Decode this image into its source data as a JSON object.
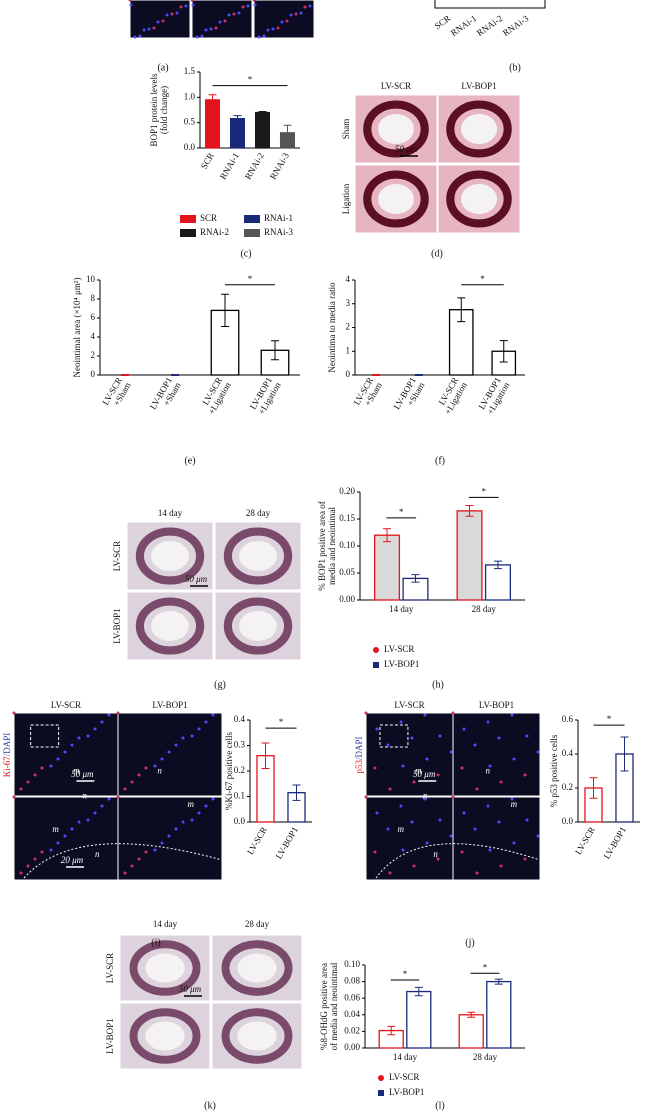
{
  "panel_labels": [
    "(a)",
    "(b)",
    "(c)",
    "(d)",
    "(e)",
    "(f)",
    "(g)",
    "(h)",
    "(i)",
    "(j)",
    "(k)",
    "(l)"
  ],
  "figure": {
    "b": {
      "categories": [
        "SCR",
        "RNAi-1",
        "RNAi-2",
        "RNAi-3"
      ]
    },
    "d": {
      "columns": [
        "LV-SCR",
        "LV-BOP1"
      ],
      "rows": [
        "Sham",
        "Ligation"
      ],
      "scale": "50 μm"
    },
    "g": {
      "columns": [
        "14 day",
        "28 day"
      ],
      "rows": [
        "LV-SCR",
        "LV-BOP1"
      ],
      "scale": "50 μm"
    },
    "i": {
      "columns": [
        "LV-SCR",
        "LV-BOP1"
      ],
      "stain": [
        "Ki-67",
        "/DAPI"
      ],
      "scales": [
        "50 μm",
        "20 μm"
      ],
      "regions": [
        "m",
        "n"
      ]
    },
    "j": {
      "columns": [
        "LV-SCR",
        "LV-BOP1"
      ],
      "stain": [
        "p53",
        "/DAPI"
      ],
      "scales": [
        "50 μm"
      ],
      "regions": [
        "m",
        "n"
      ]
    },
    "k": {
      "columns": [
        "14 day",
        "28 day"
      ],
      "rows": [
        "LV-SCR",
        "LV-BOP1"
      ],
      "scale": "50 μm"
    }
  },
  "chart_data": [
    {
      "type": "bar",
      "ylabel": [
        "BOP1 protein levels",
        "(fold change)"
      ],
      "categories": [
        [
          "SCR"
        ],
        [
          "RNAi-1"
        ],
        [
          "RNAi-2"
        ],
        [
          "RNAi-3"
        ]
      ],
      "values": [
        0.95,
        0.58,
        0.7,
        0.3
      ],
      "errors": [
        0.1,
        0.06,
        0.02,
        0.15
      ],
      "colors": [
        "#e3141c",
        "#1b2a78",
        "#1a1a1a",
        "#555555"
      ],
      "fills": [
        "#e3141c",
        "#1b2a78",
        "#1a1a1a",
        "#555555"
      ],
      "legend": [
        "SCR",
        "RNAi-1",
        "RNAi-2",
        "RNAi-3"
      ],
      "annotations": [
        "*"
      ],
      "ylim": [
        0,
        1.5
      ],
      "yticks": [
        {
          "value": 0,
          "label": "0.0"
        },
        0.5,
        {
          "value": 1,
          "label": "1.0"
        },
        1.5
      ]
    },
    {
      "type": "bar",
      "ylabel": [
        "Neointimal area (×10⁴ μm²)"
      ],
      "categories": [
        [
          "LV-SCR",
          "+Sham"
        ],
        [
          "LV-BOP1",
          "+Sham"
        ],
        [
          "LV-SCR",
          "+Ligation"
        ],
        [
          "LV-BOP1",
          "+Ligation"
        ]
      ],
      "values": [
        0,
        0,
        6.8,
        2.6
      ],
      "errors": [
        0.05,
        0.05,
        1.7,
        1.0
      ],
      "colors": [
        "#e3141c",
        "#1b2a78",
        "#000000",
        "#000000"
      ],
      "fills": [
        "#ffffff",
        "#ffffff",
        "#ffffff",
        "#ffffff"
      ],
      "annotations": [
        "*"
      ],
      "ylim": [
        0,
        10
      ],
      "yticks": [
        0,
        2,
        4,
        6,
        8,
        10
      ]
    },
    {
      "type": "bar",
      "ylabel": [
        "Neointima to media ratio"
      ],
      "categories": [
        [
          "LV-SCR",
          "+Sham"
        ],
        [
          "LV-BOP1",
          "+Sham"
        ],
        [
          "LV-SCR",
          "+Ligation"
        ],
        [
          "LV-BOP1",
          "+Ligation"
        ]
      ],
      "values": [
        0,
        0,
        2.75,
        1.0
      ],
      "errors": [
        0.02,
        0.02,
        0.5,
        0.45
      ],
      "colors": [
        "#e3141c",
        "#1b2a78",
        "#000000",
        "#000000"
      ],
      "fills": [
        "#ffffff",
        "#ffffff",
        "#ffffff",
        "#ffffff"
      ],
      "annotations": [
        "*"
      ],
      "ylim": [
        0,
        4
      ],
      "yticks": [
        0,
        1,
        2,
        3,
        4
      ]
    },
    {
      "type": "grouped_bar",
      "ylabel": [
        "% BOP1 positive area of",
        "media and neointimal"
      ],
      "categories": [
        [
          "14 day"
        ],
        [
          "28 day"
        ]
      ],
      "series": [
        {
          "name": "LV-SCR",
          "color": "#e3141c",
          "fill": "#d9d9d9",
          "marker": "circle",
          "values": [
            0.12,
            0.165
          ],
          "errors": [
            0.012,
            0.01
          ]
        },
        {
          "name": "LV-BOP1",
          "color": "#1b2a78",
          "fill": "#ffffff",
          "marker": "square",
          "values": [
            0.04,
            0.065
          ],
          "errors": [
            0.007,
            0.007
          ]
        }
      ],
      "annotations": [
        "*",
        "*"
      ],
      "ylim": [
        0,
        0.2
      ],
      "yticks": [
        {
          "value": 0,
          "label": "0.00"
        },
        0.05,
        {
          "value": 0.1,
          "label": "0.10"
        },
        0.15,
        {
          "value": 0.2,
          "label": "0.20"
        }
      ]
    },
    {
      "type": "bar",
      "ylabel": [
        "%Ki-67 positive cells"
      ],
      "categories": [
        [
          "LV-SCR"
        ],
        [
          "LV-BOP1"
        ]
      ],
      "values": [
        0.26,
        0.115
      ],
      "errors": [
        0.05,
        0.03
      ],
      "colors": [
        "#e3141c",
        "#1b2a78"
      ],
      "fills": [
        "#ffffff",
        "#ffffff"
      ],
      "annotations": [
        "*"
      ],
      "ylim": [
        0,
        0.4
      ],
      "yticks": [
        {
          "value": 0,
          "label": "0.0"
        },
        0.1,
        0.2,
        0.3,
        0.4
      ]
    },
    {
      "type": "bar",
      "ylabel": [
        "% p53 positive cells"
      ],
      "categories": [
        [
          "LV-SCR"
        ],
        [
          "LV-BOP1"
        ]
      ],
      "values": [
        0.2,
        0.4
      ],
      "errors": [
        0.06,
        0.1
      ],
      "colors": [
        "#e3141c",
        "#1b2a78"
      ],
      "fills": [
        "#ffffff",
        "#ffffff"
      ],
      "annotations": [
        "*"
      ],
      "ylim": [
        0,
        0.6
      ],
      "yticks": [
        {
          "value": 0,
          "label": "0.0"
        },
        0.2,
        0.4,
        0.6
      ]
    },
    {
      "type": "grouped_bar",
      "ylabel": [
        "%8-OHdG positive area",
        "of media and neointimal"
      ],
      "categories": [
        [
          "14 day"
        ],
        [
          "28 day"
        ]
      ],
      "series": [
        {
          "name": "LV-SCR",
          "color": "#e3141c",
          "fill": "#ffffff",
          "marker": "circle",
          "values": [
            0.021,
            0.04
          ],
          "errors": [
            0.005,
            0.003
          ]
        },
        {
          "name": "LV-BOP1",
          "color": "#1b2a78",
          "fill": "#ffffff",
          "marker": "square",
          "values": [
            0.068,
            0.08
          ],
          "errors": [
            0.005,
            0.003
          ]
        }
      ],
      "annotations": [
        "*",
        "*"
      ],
      "ylim": [
        0,
        0.1
      ],
      "yticks": [
        {
          "value": 0,
          "label": "0.00"
        },
        0.02,
        0.04,
        0.06,
        0.08,
        {
          "value": 0.1,
          "label": "0.10"
        }
      ]
    }
  ]
}
